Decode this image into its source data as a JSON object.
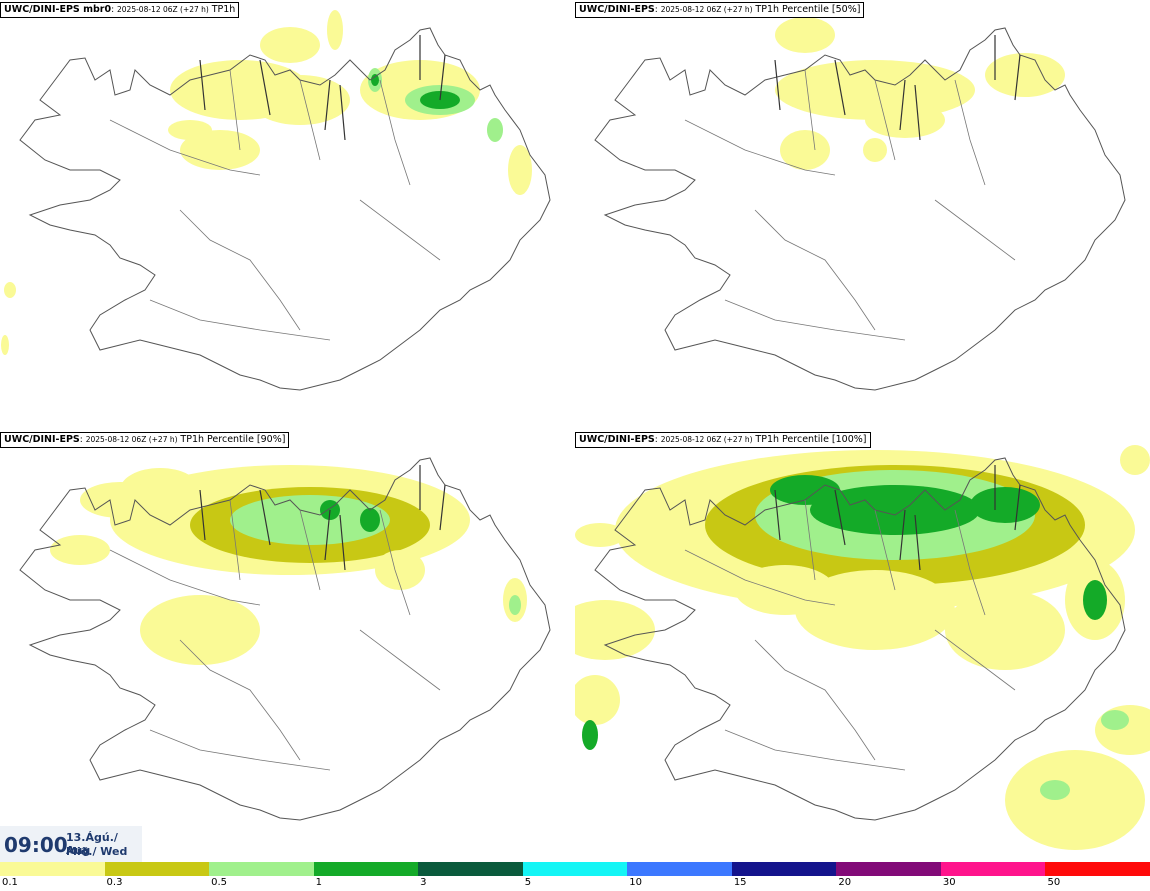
{
  "panels": [
    {
      "model": "UWC/DINI-EPS mbr0",
      "run": "2025-08-12 06Z (+27 h)",
      "param": "TP1h"
    },
    {
      "model": "UWC/DINI-EPS",
      "run": "2025-08-12 06Z (+27 h)",
      "param": "TP1h Percentile [50%]"
    },
    {
      "model": "UWC/DINI-EPS",
      "run": "2025-08-12 06Z (+27 h)",
      "param": "TP1h Percentile [90%]"
    },
    {
      "model": "UWC/DINI-EPS",
      "run": "2025-08-12 06Z (+27 h)",
      "param": "TP1h Percentile [100%]"
    }
  ],
  "valid_time": {
    "time": "09:00",
    "date_line1": "13.Ágú./ Aug",
    "date_line2": "Mið./ Wed"
  },
  "legend": {
    "labels": [
      "0.1",
      "0.3",
      "0.5",
      "1",
      "3",
      "5",
      "10",
      "15",
      "20",
      "30",
      "50"
    ],
    "colors": [
      "#fafa96",
      "#c8c814",
      "#a0f08c",
      "#14aa28",
      "#0a5a3c",
      "#14f5f5",
      "#3c78ff",
      "#14148c",
      "#820a78",
      "#ff148c",
      "#ff0a0a"
    ]
  }
}
